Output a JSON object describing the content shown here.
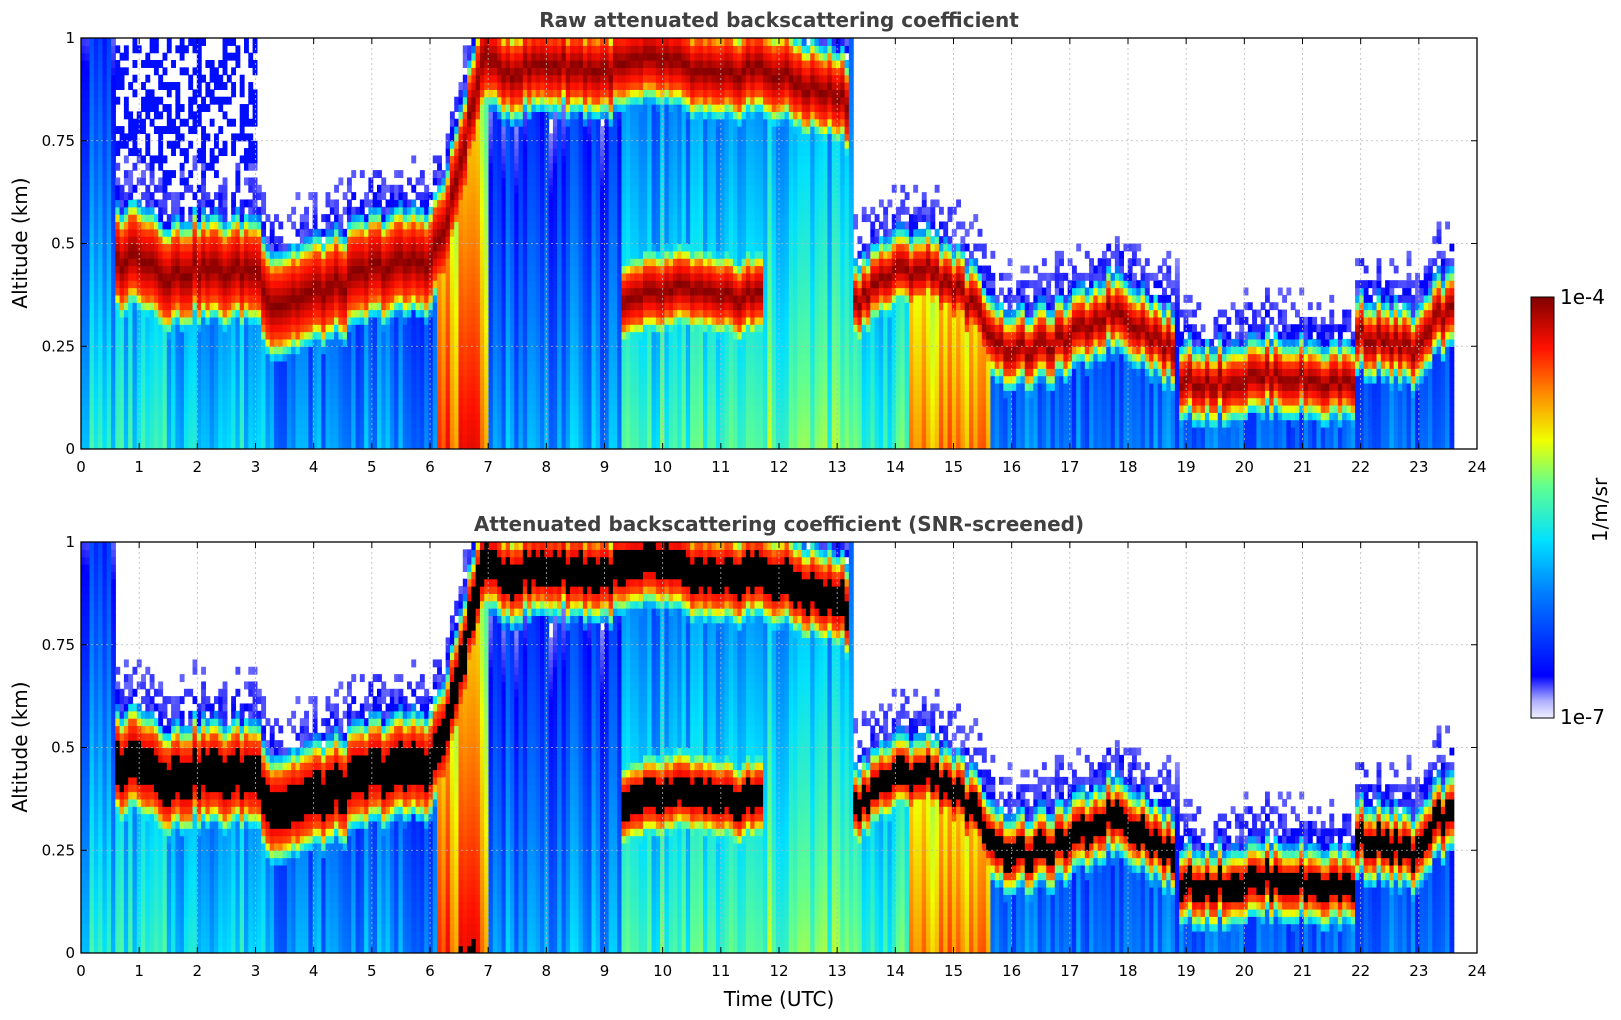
{
  "chart_data": [
    {
      "type": "heatmap",
      "title": "Raw attenuated backscattering coefficient",
      "xlabel": "",
      "ylabel": "Altitude (km)",
      "xlim": [
        0,
        24
      ],
      "ylim": [
        0,
        1
      ],
      "x_ticks": [
        "0",
        "1",
        "2",
        "3",
        "4",
        "5",
        "6",
        "7",
        "8",
        "9",
        "10",
        "11",
        "12",
        "13",
        "14",
        "15",
        "16",
        "17",
        "18",
        "19",
        "20",
        "21",
        "22",
        "23",
        "24"
      ],
      "y_ticks": [
        "0",
        "0.25",
        "0.5",
        "0.75",
        "1"
      ],
      "grid": true,
      "data_end_time": 23.6,
      "colormap": "jet",
      "layers": [
        {
          "t": [
            0.6,
            1.0,
            1.5,
            2.0,
            2.5,
            3.0,
            3.3,
            4.0,
            4.5,
            5.0,
            5.5,
            6.0,
            6.3,
            6.6,
            7.0
          ],
          "z": [
            0.45,
            0.48,
            0.42,
            0.44,
            0.43,
            0.44,
            0.35,
            0.38,
            0.4,
            0.44,
            0.45,
            0.46,
            0.55,
            0.75,
            1.0
          ],
          "thickness": 0.17
        },
        {
          "t": [
            7.0,
            7.5,
            8.0,
            8.5,
            9.0,
            9.5,
            10.0,
            10.5,
            11.0,
            11.5,
            12.0,
            12.5,
            13.0,
            13.2
          ],
          "z": [
            0.93,
            0.92,
            0.94,
            0.93,
            0.92,
            0.94,
            0.95,
            0.92,
            0.9,
            0.93,
            0.91,
            0.88,
            0.86,
            0.84
          ],
          "thickness": 0.14
        },
        {
          "t": [
            9.3,
            9.7,
            10.0,
            10.5,
            11.0,
            11.5,
            11.7
          ],
          "z": [
            0.35,
            0.37,
            0.38,
            0.39,
            0.36,
            0.38,
            0.37
          ],
          "thickness": 0.12
        },
        {
          "t": [
            13.3,
            13.6,
            14.0,
            14.5,
            15.0,
            15.5,
            15.8,
            16.3,
            17.0,
            17.5,
            17.8,
            18.2,
            18.8
          ],
          "z": [
            0.35,
            0.4,
            0.43,
            0.44,
            0.4,
            0.32,
            0.25,
            0.24,
            0.27,
            0.32,
            0.34,
            0.3,
            0.24
          ],
          "thickness": 0.1
        },
        {
          "t": [
            18.9,
            19.5,
            20.0,
            20.5,
            21.0,
            21.5,
            21.9
          ],
          "z": [
            0.17,
            0.16,
            0.17,
            0.18,
            0.17,
            0.16,
            0.17
          ],
          "thickness": 0.1
        },
        {
          "t": [
            21.9,
            22.3,
            22.7,
            23.0,
            23.3,
            23.6
          ],
          "z": [
            0.28,
            0.27,
            0.25,
            0.24,
            0.32,
            0.33
          ],
          "thickness": 0.1
        }
      ],
      "lower_bands": [
        {
          "t0": 0,
          "t1": 1.5,
          "level": 0.45
        },
        {
          "t0": 1.5,
          "t1": 3.3,
          "level": 0.42
        },
        {
          "t0": 3.3,
          "t1": 6.1,
          "level": 0.32
        },
        {
          "t0": 6.1,
          "t1": 7.0,
          "level": 0.82
        },
        {
          "t0": 7.0,
          "t1": 9.3,
          "level": 0.34
        },
        {
          "t0": 9.3,
          "t1": 11.7,
          "level": 0.5
        },
        {
          "t0": 11.7,
          "t1": 13.3,
          "level": 0.55
        },
        {
          "t0": 13.3,
          "t1": 14.2,
          "level": 0.5
        },
        {
          "t0": 14.2,
          "t1": 15.6,
          "level": 0.78
        },
        {
          "t0": 15.6,
          "t1": 18.9,
          "level": 0.28
        },
        {
          "t0": 18.9,
          "t1": 23.6,
          "level": 0.26
        }
      ]
    },
    {
      "type": "heatmap",
      "title": "Attenuated backscattering coefficient (SNR-screened)",
      "xlabel": "Time (UTC)",
      "ylabel": "Altitude (km)",
      "xlim": [
        0,
        24
      ],
      "ylim": [
        0,
        1
      ],
      "x_ticks": [
        "0",
        "1",
        "2",
        "3",
        "4",
        "5",
        "6",
        "7",
        "8",
        "9",
        "10",
        "11",
        "12",
        "13",
        "14",
        "15",
        "16",
        "17",
        "18",
        "19",
        "20",
        "21",
        "22",
        "23",
        "24"
      ],
      "y_ticks": [
        "0",
        "0.25",
        "0.5",
        "0.75",
        "1"
      ],
      "grid": true,
      "data_end_time": 23.6,
      "colormap": "jet",
      "saturated_color": "#000000",
      "layers": "same as raw panel"
    }
  ],
  "colorbar": {
    "label": "1/m/sr",
    "max_label": "1e-4",
    "min_label": "1e-7",
    "scale": "log"
  }
}
